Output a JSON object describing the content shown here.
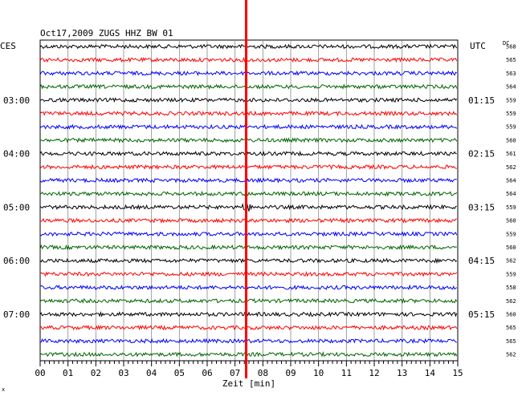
{
  "chart_data": {
    "type": "line",
    "title": "Oct17,2009   ZUGS HHZ BW 01",
    "left_axis_label": "CES",
    "right_axis_label": "UTC",
    "dc_label": "DC",
    "xlabel": "Zeit [min]",
    "xlim": [
      0,
      15
    ],
    "x_ticks": [
      "00",
      "01",
      "02",
      "03",
      "04",
      "05",
      "06",
      "07",
      "08",
      "09",
      "10",
      "11",
      "12",
      "13",
      "14",
      "15"
    ],
    "left_time_labels": [
      "03:00",
      "04:00",
      "05:00",
      "06:00",
      "07:00"
    ],
    "right_time_labels": [
      "01:15",
      "02:15",
      "03:15",
      "04:15",
      "05:15"
    ],
    "time_label_rows": [
      4,
      8,
      12,
      16,
      20
    ],
    "trace_colors": [
      "#000000",
      "#ff0000",
      "#0000ff",
      "#006400"
    ],
    "dc_values": [
      "568",
      "565",
      "563",
      "564",
      "559",
      "559",
      "559",
      "560",
      "561",
      "562",
      "564",
      "564",
      "559",
      "560",
      "559",
      "560",
      "562",
      "559",
      "558",
      "562",
      "560",
      "565",
      "565",
      "562"
    ],
    "event_marker": {
      "minute": 7.4,
      "color": "#ff0000"
    },
    "event_row": 12
  },
  "footer_mark": "x"
}
